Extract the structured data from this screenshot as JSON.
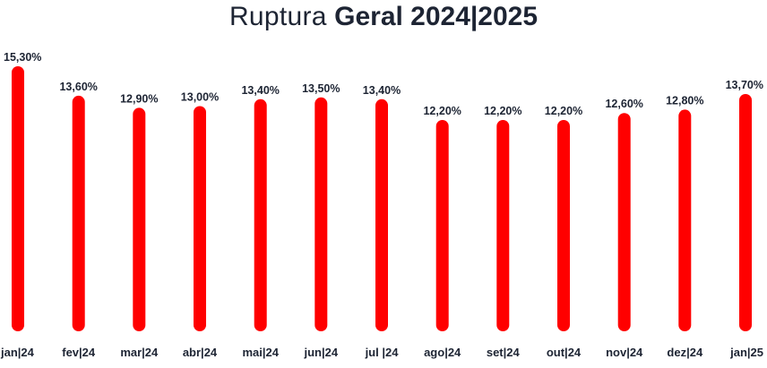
{
  "title": {
    "light": "Ruptura",
    "bold": "Geral 2024|2025"
  },
  "chart_data": {
    "type": "bar",
    "categories": [
      "jan|24",
      "fev|24",
      "mar|24",
      "abr|24",
      "mai|24",
      "jun|24",
      "jul |24",
      "ago|24",
      "set|24",
      "out|24",
      "nov|24",
      "dez|24",
      "jan|25"
    ],
    "values": [
      15.3,
      13.6,
      12.9,
      13.0,
      13.4,
      13.5,
      13.4,
      12.2,
      12.2,
      12.2,
      12.6,
      12.8,
      13.7
    ],
    "data_labels": [
      "15,30%",
      "13,60%",
      "12,90%",
      "13,00%",
      "13,40%",
      "13,50%",
      "13,40%",
      "12,20%",
      "12,20%",
      "12,20%",
      "12,60%",
      "12,80%",
      "13,70%"
    ],
    "ylim": [
      0,
      15.3
    ],
    "bar_color": "#ff0000",
    "grid": false,
    "legend": "none"
  }
}
